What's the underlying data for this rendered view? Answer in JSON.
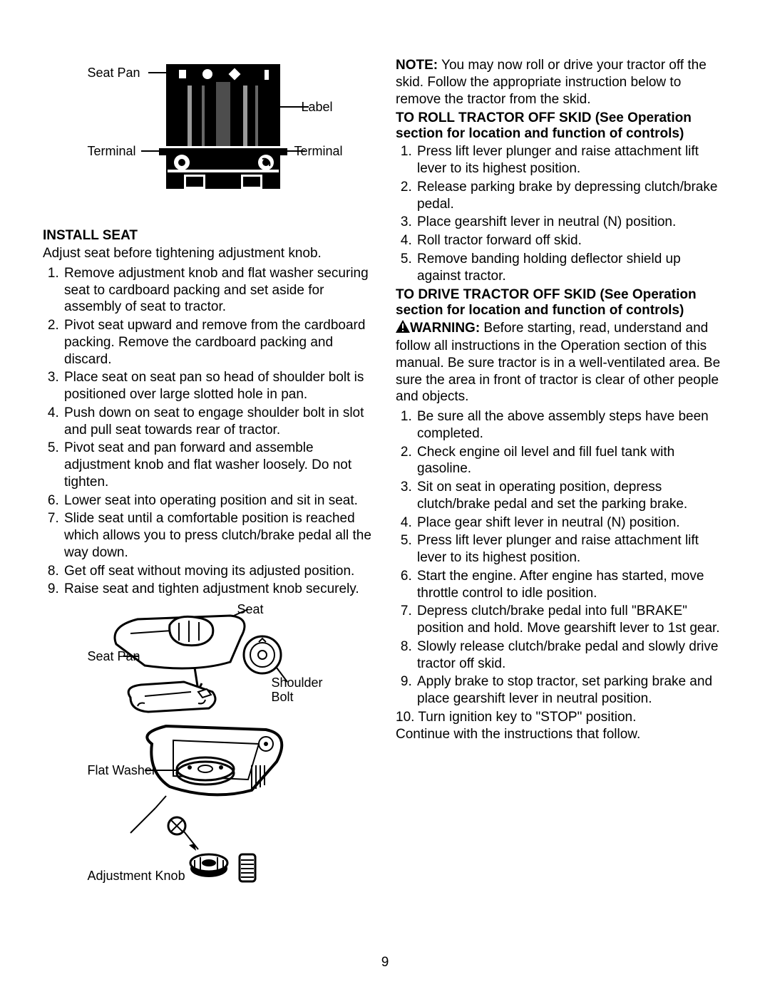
{
  "diagram1": {
    "labels": {
      "seat_pan": "Seat Pan",
      "label": "Label",
      "terminal_left": "Terminal",
      "terminal_right": "Terminal"
    }
  },
  "left": {
    "heading": "INSTALL SEAT",
    "intro": "Adjust seat before tightening adjustment knob.",
    "steps": [
      "Remove adjustment knob and flat washer securing seat to cardboard packing and set aside for assembly of seat to tractor.",
      "Pivot seat upward and remove from the cardboard packing. Remove the cardboard packing and discard.",
      "Place seat on seat pan so head of shoulder bolt is positioned over large slotted hole in pan.",
      "Push down on seat to engage shoulder bolt in slot and pull seat towards rear of tractor.",
      "Pivot seat and pan forward and assemble adjustment knob and flat washer loosely. Do not tighten.",
      "Lower seat into operating position and sit in seat.",
      "Slide seat until a comfortable position is reached which allows you to press clutch/brake pedal all the way down.",
      "Get off seat without moving its adjusted position.",
      "Raise seat and tighten adjustment knob securely."
    ]
  },
  "diagram2": {
    "labels": {
      "seat": "Seat",
      "seat_pan": "Seat Pan",
      "shoulder_bolt": "Shoulder Bolt",
      "flat_washer": "Flat Washer",
      "adjustment_knob": "Adjustment Knob"
    }
  },
  "right": {
    "note_lead": "NOTE:",
    "note_body": " You may now roll or drive your tractor off the skid. Follow the appropriate instruction below to remove the tractor from the skid.",
    "roll_heading": "TO ROLL TRACTOR OFF SKID (See Operation section for location and function of controls)",
    "roll_steps": [
      "Press lift lever plunger and raise attachment lift lever to its highest position.",
      "Release parking brake by depressing clutch/brake pedal.",
      "Place gearshift lever in neutral (N) position.",
      "Roll tractor forward off skid.",
      "Remove banding holding deflector shield up against tractor."
    ],
    "drive_heading": "TO DRIVE TRACTOR OFF SKID (See Operation section for location and function of controls)",
    "warning_lead": "WARNING:",
    "warning_body": " Before starting, read, understand and follow all instructions in the Operation section of this manual. Be sure tractor is in a well-ventilated area. Be sure the area in front of tractor is clear of other people and objects.",
    "drive_steps": [
      "Be sure all the above assembly steps have been completed.",
      "Check engine oil level and fill fuel tank with gasoline.",
      "Sit on seat in operating position, depress clutch/brake pedal and set the parking brake.",
      "Place gear shift lever in neutral (N) position.",
      "Press lift lever plunger and raise attachment lift lever to its highest position.",
      "Start the engine. After engine has started, move throttle control to idle position.",
      "Depress clutch/brake pedal into full \"BRAKE\" position and hold. Move gearshift lever to 1st gear.",
      "Slowly release clutch/brake pedal and slowly drive tractor off skid.",
      "Apply brake to stop tractor, set parking brake and place gearshift lever in neutral position."
    ],
    "drive_step_10": "10. Turn ignition key to \"STOP\" position.",
    "continue": "Continue with the instructions that follow."
  },
  "page_number": "9"
}
